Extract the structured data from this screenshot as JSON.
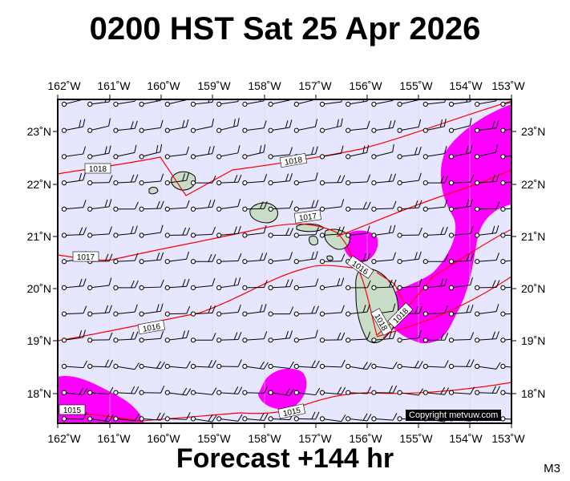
{
  "title": "0200 HST Sat 25 Apr 2026",
  "footer": "Forecast +144 hr",
  "model_tag": "M3",
  "copyright": "Copyright metvuw.com",
  "colors": {
    "ocean": "#e6e6ff",
    "isobar": "#ff0000",
    "precip": "#ff00ff",
    "land": "#c8dcc8",
    "barb": "#000000"
  },
  "axes": {
    "lon_labels": [
      "162˚W",
      "161˚W",
      "160˚W",
      "159˚W",
      "158˚W",
      "157˚W",
      "156˚W",
      "155˚W",
      "154˚W",
      "153˚W"
    ],
    "lat_labels": [
      "23˚N",
      "22˚N",
      "21˚N",
      "20˚N",
      "19˚N",
      "18˚N"
    ]
  },
  "isobar_labels": [
    "1018",
    "1018",
    "1017",
    "1017",
    "1016",
    "1016",
    "1018",
    "1018",
    "1015",
    "1015"
  ]
}
